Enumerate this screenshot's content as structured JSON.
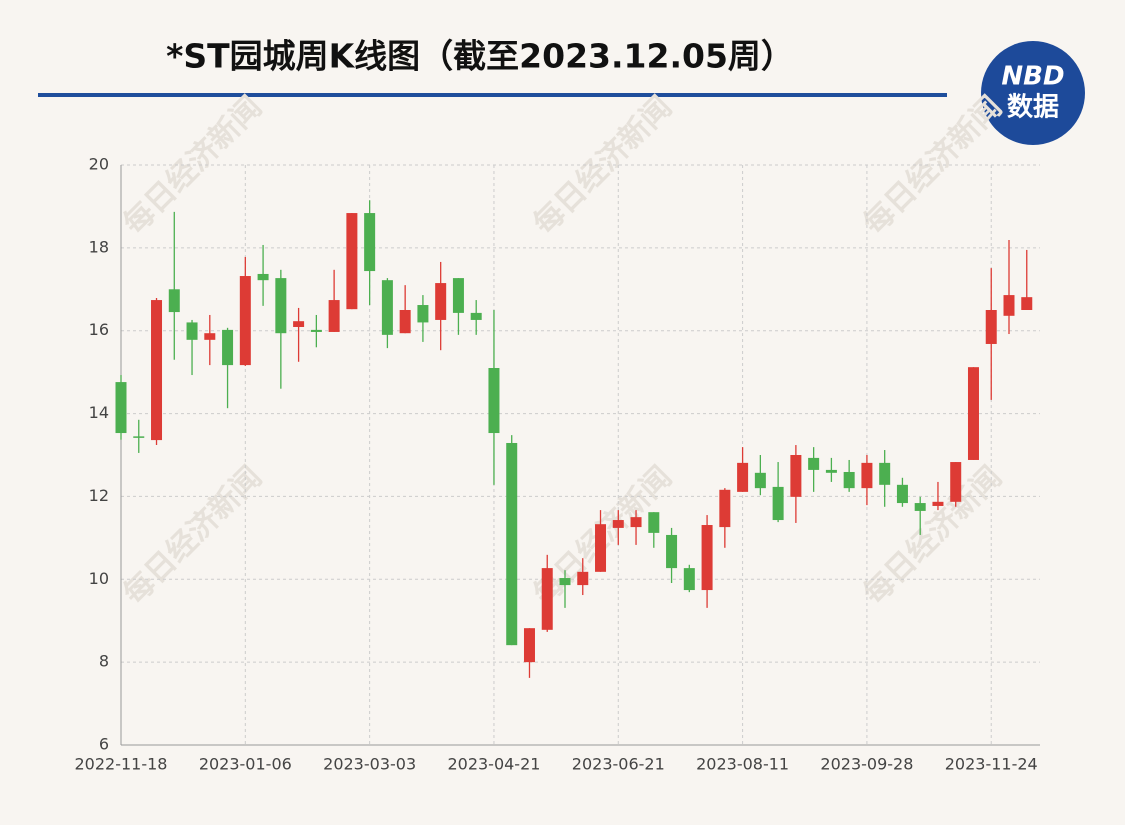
{
  "chart_data": {
    "type": "candlestick",
    "title": "*ST园城周K线图（截至2023.12.05周）",
    "logo": {
      "top": "NBD",
      "bottom": "数据"
    },
    "watermark": "每日经济新闻",
    "categories": [
      "2022-11-18",
      null,
      null,
      null,
      null,
      null,
      null,
      "2023-01-06",
      null,
      null,
      null,
      null,
      null,
      null,
      "2023-03-03",
      null,
      null,
      null,
      null,
      null,
      null,
      "2023-04-21",
      null,
      null,
      null,
      null,
      null,
      null,
      "2023-06-21",
      null,
      null,
      null,
      null,
      null,
      null,
      "2023-08-11",
      null,
      null,
      null,
      null,
      null,
      null,
      "2023-09-28",
      null,
      null,
      null,
      null,
      null,
      null,
      "2023-11-24",
      null,
      null
    ],
    "open": [
      14.76,
      13.45,
      13.36,
      17.0,
      16.2,
      15.78,
      16.02,
      15.17,
      17.37,
      17.27,
      16.09,
      16.02,
      15.97,
      16.52,
      18.84,
      17.22,
      15.94,
      16.62,
      16.26,
      17.27,
      16.43,
      15.1,
      13.29,
      8.0,
      8.78,
      10.03,
      9.86,
      10.18,
      11.24,
      11.26,
      11.62,
      11.07,
      10.27,
      9.74,
      11.26,
      12.11,
      12.57,
      12.23,
      11.99,
      12.93,
      12.64,
      12.59,
      12.2,
      12.81,
      12.28,
      11.84,
      11.77,
      11.87,
      12.88,
      15.68,
      16.36,
      16.5
    ],
    "high": [
      14.93,
      13.85,
      16.79,
      18.87,
      16.26,
      16.38,
      16.07,
      17.78,
      18.07,
      17.47,
      16.55,
      16.38,
      17.47,
      18.84,
      19.15,
      17.27,
      17.1,
      16.86,
      17.66,
      17.27,
      16.74,
      16.5,
      13.48,
      8.82,
      10.59,
      10.22,
      10.51,
      11.67,
      11.67,
      11.67,
      11.62,
      11.24,
      10.35,
      11.55,
      12.2,
      13.19,
      13.0,
      12.83,
      13.24,
      13.19,
      12.93,
      12.88,
      13.0,
      13.12,
      12.45,
      11.99,
      12.35,
      12.83,
      15.12,
      17.51,
      18.19,
      17.95
    ],
    "low": [
      13.37,
      13.05,
      13.24,
      15.3,
      14.93,
      15.17,
      14.13,
      15.15,
      16.6,
      14.6,
      15.25,
      15.6,
      15.97,
      16.52,
      16.62,
      15.58,
      15.94,
      15.73,
      15.53,
      15.9,
      15.9,
      12.28,
      8.41,
      7.62,
      8.73,
      9.31,
      9.62,
      10.18,
      10.83,
      10.83,
      10.76,
      9.91,
      9.69,
      9.31,
      10.76,
      12.11,
      12.03,
      11.38,
      11.36,
      12.11,
      12.35,
      12.11,
      11.79,
      11.75,
      11.75,
      11.07,
      11.67,
      11.75,
      12.88,
      14.33,
      15.92,
      16.5
    ],
    "close": [
      13.53,
      13.42,
      16.74,
      16.45,
      15.78,
      15.94,
      15.17,
      17.32,
      17.22,
      15.94,
      16.23,
      15.97,
      16.74,
      18.84,
      17.44,
      15.9,
      16.5,
      16.2,
      17.15,
      16.43,
      16.26,
      13.53,
      8.41,
      8.82,
      10.27,
      9.86,
      10.18,
      11.33,
      11.43,
      11.5,
      11.12,
      10.27,
      9.74,
      11.31,
      12.16,
      12.81,
      12.2,
      11.43,
      13.0,
      12.64,
      12.57,
      12.2,
      12.81,
      12.28,
      11.84,
      11.65,
      11.87,
      12.83,
      15.12,
      16.5,
      16.86,
      16.81
    ],
    "up_color": "#dd3b35",
    "down_color": "#4caf50",
    "ylim": [
      6,
      20
    ],
    "yticks": [
      6,
      8,
      10,
      12,
      14,
      16,
      18,
      20
    ],
    "grid": true
  }
}
